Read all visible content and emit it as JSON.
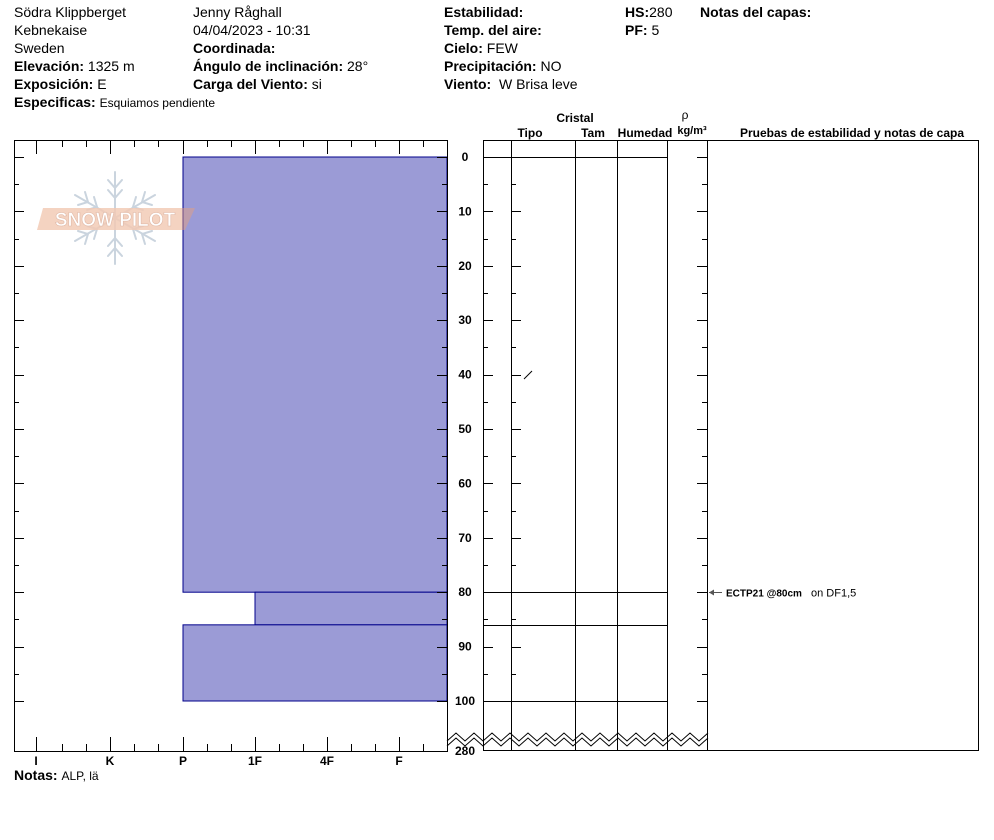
{
  "header": {
    "location": "Södra Klippberget",
    "region": "Kebnekaise",
    "country": "Sweden",
    "elevation_label": "Elevación:",
    "elevation_value": "1325 m",
    "aspect_label": "Exposición:",
    "aspect_value": "E",
    "specifics_label": "Especificas:",
    "specifics_value": "Esquiamos pendiente",
    "observer": "Jenny Råghall",
    "datetime": "04/04/2023 - 10:31",
    "coord_label": "Coordinada:",
    "slope_label": "Ángulo de inclinación:",
    "slope_value": "28°",
    "windload_label": "Carga del Viento:",
    "windload_value": "si",
    "stability_label": "Estabilidad:",
    "airtemp_label": "Temp. del aire:",
    "sky_label": "Cielo:",
    "sky_value": "FEW",
    "precip_label": "Precipitación:",
    "precip_value": "NO",
    "wind_label": "Viento:",
    "wind_value": "W Brisa leve",
    "hs_label": "HS:",
    "hs_value": "280",
    "pf_label": "PF:",
    "pf_value": "5",
    "layer_notes_label": "Notas del capas:"
  },
  "footer": {
    "notes_label": "Notas:",
    "notes_value": "ALP, lä"
  },
  "watermark": "SNOW PILOT",
  "chart_data": {
    "type": "bar",
    "x_categories": [
      "I",
      "K",
      "P",
      "1F",
      "4F",
      "F"
    ],
    "y_ticks": [
      "0",
      "10",
      "20",
      "30",
      "40",
      "50",
      "60",
      "70",
      "80",
      "90",
      "100",
      "280"
    ],
    "depth_range": [
      0,
      100
    ],
    "layers": [
      {
        "top": 0,
        "bottom": 80,
        "hardness": "P"
      },
      {
        "top": 80,
        "bottom": 86,
        "hardness": "1F"
      },
      {
        "top": 86,
        "bottom": 100,
        "hardness": "P"
      }
    ],
    "columns": {
      "crystal_label": "Cristal",
      "type_label": "Tipo",
      "size_label": "Tam",
      "moisture_label": "Humedad",
      "density_symbol": "ρ",
      "density_unit": "kg/m³",
      "tests_label": "Pruebas de estabilidad y notas de capa"
    },
    "boundaries": [
      0,
      80,
      86,
      100
    ],
    "test": {
      "depth": 80,
      "code": "ECTP21 @80cm",
      "note": "on DF1,5"
    },
    "fill_color": "#9b9bd6",
    "edge_color": "#00008b"
  }
}
